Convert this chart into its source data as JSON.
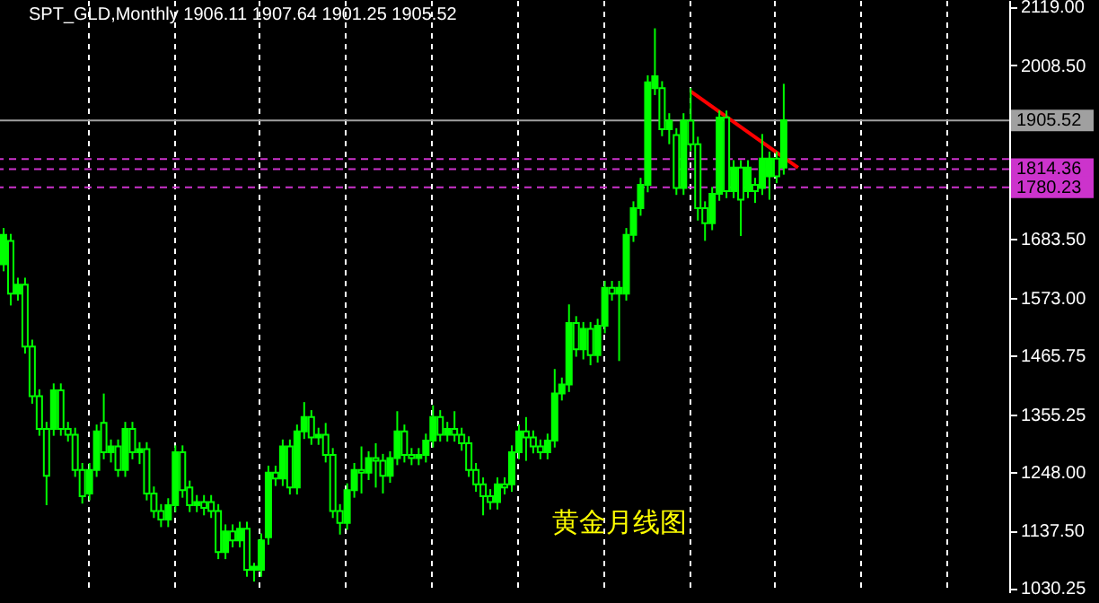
{
  "chart_data": {
    "type": "candlestick",
    "title": "SPT_GLD,Monthly 1906.11 1907.64 1901.25 1905.52",
    "annotations": [
      "黄金月线图"
    ],
    "color": "#00ff00",
    "categories": [
      null,
      null,
      null,
      null,
      null,
      null,
      null,
      null,
      null,
      null,
      null,
      null,
      null,
      null,
      null,
      null,
      null,
      null,
      null,
      null,
      null,
      null,
      null,
      null,
      null,
      null,
      null,
      null,
      null,
      null,
      null,
      null,
      null,
      null,
      null,
      null,
      null,
      null,
      null,
      null,
      null,
      null,
      null,
      null,
      null,
      null,
      null,
      null,
      null,
      null,
      null,
      null,
      null,
      null,
      null,
      null,
      null,
      null,
      null,
      null,
      null,
      null,
      null,
      null,
      null,
      null,
      null,
      null,
      null,
      null,
      null,
      null,
      null,
      null,
      null,
      null,
      null,
      null,
      null,
      null,
      null,
      null,
      null,
      null,
      null,
      null,
      null,
      null,
      null,
      null,
      null,
      null,
      null,
      null,
      null,
      null,
      null,
      null,
      null,
      null,
      null,
      null,
      null,
      null,
      null,
      null,
      null,
      null,
      null,
      null,
      null,
      null,
      null,
      null,
      null,
      null,
      null,
      null,
      null,
      null,
      null,
      null,
      null,
      null,
      null,
      null,
      null,
      null,
      null,
      null,
      null,
      null,
      null,
      null,
      null,
      null,
      null,
      null,
      null,
      null,
      null
    ],
    "ohlc": [
      [
        1636,
        1704,
        1623,
        1691
      ],
      [
        1680,
        1693,
        1559,
        1581
      ],
      [
        1581,
        1611,
        1568,
        1598
      ],
      [
        1598,
        1611,
        1469,
        1482
      ],
      [
        1482,
        1495,
        1375,
        1389
      ],
      [
        1389,
        1402,
        1315,
        1328
      ],
      [
        1328,
        1341,
        1185,
        1240
      ],
      [
        1328,
        1413,
        1315,
        1400
      ],
      [
        1400,
        1413,
        1315,
        1328
      ],
      [
        1328,
        1341,
        1304,
        1317
      ],
      [
        1317,
        1330,
        1238,
        1251
      ],
      [
        1251,
        1264,
        1188,
        1202
      ],
      [
        1207,
        1264,
        1194,
        1251
      ],
      [
        1251,
        1336,
        1238,
        1323
      ],
      [
        1339,
        1394,
        1271,
        1284
      ],
      [
        1284,
        1308,
        1265,
        1295
      ],
      [
        1295,
        1308,
        1238,
        1251
      ],
      [
        1251,
        1341,
        1238,
        1328
      ],
      [
        1328,
        1341,
        1271,
        1284
      ],
      [
        1284,
        1303,
        1262,
        1290
      ],
      [
        1290,
        1303,
        1194,
        1207
      ],
      [
        1207,
        1220,
        1161,
        1174
      ],
      [
        1174,
        1187,
        1144,
        1158
      ],
      [
        1158,
        1198,
        1144,
        1185
      ],
      [
        1185,
        1297,
        1172,
        1284
      ],
      [
        1284,
        1297,
        1199,
        1213
      ],
      [
        1218,
        1231,
        1172,
        1185
      ],
      [
        1185,
        1204,
        1172,
        1191
      ],
      [
        1191,
        1204,
        1166,
        1180
      ],
      [
        1191,
        1204,
        1161,
        1174
      ],
      [
        1174,
        1187,
        1084,
        1097
      ],
      [
        1097,
        1149,
        1084,
        1136
      ],
      [
        1136,
        1149,
        1106,
        1119
      ],
      [
        1119,
        1154,
        1106,
        1141
      ],
      [
        1141,
        1154,
        1051,
        1064
      ],
      [
        1064,
        1077,
        1042,
        1070
      ],
      [
        1064,
        1132,
        1051,
        1119
      ],
      [
        1125,
        1259,
        1111,
        1246
      ],
      [
        1246,
        1259,
        1221,
        1235
      ],
      [
        1235,
        1308,
        1221,
        1295
      ],
      [
        1295,
        1308,
        1205,
        1218
      ],
      [
        1218,
        1336,
        1205,
        1323
      ],
      [
        1323,
        1378,
        1309,
        1350
      ],
      [
        1350,
        1363,
        1298,
        1312
      ],
      [
        1312,
        1330,
        1298,
        1317
      ],
      [
        1317,
        1339,
        1265,
        1279
      ],
      [
        1279,
        1292,
        1161,
        1174
      ],
      [
        1174,
        1187,
        1130,
        1152
      ],
      [
        1152,
        1226,
        1139,
        1213
      ],
      [
        1213,
        1264,
        1199,
        1251
      ],
      [
        1251,
        1295,
        1207,
        1246
      ],
      [
        1246,
        1286,
        1232,
        1273
      ],
      [
        1273,
        1301,
        1218,
        1268
      ],
      [
        1268,
        1281,
        1207,
        1240
      ],
      [
        1240,
        1286,
        1227,
        1273
      ],
      [
        1273,
        1361,
        1260,
        1323
      ],
      [
        1323,
        1336,
        1265,
        1279
      ],
      [
        1279,
        1292,
        1260,
        1273
      ],
      [
        1273,
        1292,
        1260,
        1279
      ],
      [
        1279,
        1319,
        1265,
        1306
      ],
      [
        1306,
        1372,
        1293,
        1350
      ],
      [
        1350,
        1363,
        1304,
        1317
      ],
      [
        1317,
        1341,
        1304,
        1328
      ],
      [
        1328,
        1361,
        1304,
        1317
      ],
      [
        1317,
        1330,
        1287,
        1301
      ],
      [
        1301,
        1314,
        1238,
        1251
      ],
      [
        1251,
        1264,
        1210,
        1224
      ],
      [
        1224,
        1237,
        1166,
        1202
      ],
      [
        1202,
        1215,
        1177,
        1191
      ],
      [
        1191,
        1237,
        1177,
        1224
      ],
      [
        1224,
        1237,
        1205,
        1218
      ],
      [
        1224,
        1297,
        1210,
        1284
      ],
      [
        1284,
        1336,
        1271,
        1323
      ],
      [
        1323,
        1350,
        1268,
        1312
      ],
      [
        1312,
        1325,
        1282,
        1295
      ],
      [
        1295,
        1308,
        1271,
        1284
      ],
      [
        1284,
        1319,
        1271,
        1306
      ],
      [
        1306,
        1440,
        1293,
        1394
      ],
      [
        1394,
        1424,
        1381,
        1411
      ],
      [
        1411,
        1561,
        1397,
        1526
      ],
      [
        1526,
        1539,
        1463,
        1477
      ],
      [
        1477,
        1528,
        1458,
        1515
      ],
      [
        1515,
        1528,
        1447,
        1466
      ],
      [
        1466,
        1534,
        1452,
        1521
      ],
      [
        1521,
        1605,
        1507,
        1592
      ],
      [
        1592,
        1605,
        1568,
        1581
      ],
      [
        1581,
        1605,
        1455,
        1592
      ],
      [
        1581,
        1704,
        1568,
        1691
      ],
      [
        1691,
        1754,
        1678,
        1741
      ],
      [
        1741,
        1798,
        1727,
        1785
      ],
      [
        1785,
        1990,
        1771,
        1977
      ],
      [
        1966,
        2078,
        1953,
        1988
      ],
      [
        1966,
        1979,
        1876,
        1889
      ],
      [
        1889,
        1919,
        1861,
        1905
      ],
      [
        1878,
        1891,
        1766,
        1779
      ],
      [
        1779,
        1919,
        1766,
        1905
      ],
      [
        1905,
        1966,
        1848,
        1861
      ],
      [
        1861,
        1875,
        1718,
        1741
      ],
      [
        1741,
        1754,
        1680,
        1713
      ],
      [
        1713,
        1781,
        1700,
        1768
      ],
      [
        1768,
        1924,
        1755,
        1911
      ],
      [
        1911,
        1924,
        1760,
        1773
      ],
      [
        1773,
        1831,
        1760,
        1817
      ],
      [
        1817,
        1831,
        1689,
        1757
      ],
      [
        1773,
        1831,
        1760,
        1817
      ],
      [
        1785,
        1798,
        1751,
        1773
      ],
      [
        1779,
        1880,
        1766,
        1834
      ],
      [
        1801,
        1847,
        1757,
        1834
      ],
      [
        1834,
        1847,
        1788,
        1801
      ],
      [
        1817,
        1974,
        1804,
        1906
      ],
      null,
      null,
      null,
      null,
      null,
      null,
      null,
      null,
      null,
      null,
      null,
      null,
      null,
      null,
      null,
      null,
      null,
      null,
      null,
      null,
      null,
      null,
      null,
      null,
      null,
      null,
      null,
      null,
      null,
      null,
      null
    ],
    "series": [
      {
        "type": "line",
        "color": "#ff0000",
        "values": [
          null,
          null,
          null,
          null,
          null,
          null,
          null,
          null,
          null,
          null,
          null,
          null,
          null,
          null,
          null,
          null,
          null,
          null,
          null,
          null,
          null,
          null,
          null,
          null,
          null,
          null,
          null,
          null,
          null,
          null,
          null,
          null,
          null,
          null,
          null,
          null,
          null,
          null,
          null,
          null,
          null,
          null,
          null,
          null,
          null,
          null,
          null,
          null,
          null,
          null,
          null,
          null,
          null,
          null,
          null,
          null,
          null,
          null,
          null,
          null,
          null,
          null,
          null,
          null,
          null,
          null,
          null,
          null,
          null,
          null,
          null,
          null,
          null,
          null,
          null,
          null,
          null,
          null,
          null,
          null,
          null,
          null,
          null,
          null,
          null,
          null,
          null,
          null,
          null,
          null,
          null,
          null,
          null,
          null,
          null,
          null,
          1960,
          null,
          null,
          null,
          null,
          null,
          null,
          null,
          null,
          null,
          null,
          null,
          null,
          null,
          null,
          1817,
          null,
          null,
          null,
          null,
          null,
          null,
          null,
          null,
          null,
          null,
          null,
          null,
          null,
          null,
          null,
          null,
          null,
          null,
          null,
          null,
          null,
          null,
          null,
          null,
          null,
          null,
          null,
          null,
          null
        ]
      }
    ],
    "ylim": [
      1022,
      2131
    ],
    "yticks": [
      {
        "value": 2119,
        "label": "2119.00"
      },
      {
        "value": 2008.5,
        "label": "2008.50"
      },
      {
        "value": 1683.5,
        "label": "1683.50"
      },
      {
        "value": 1573,
        "label": "1573.00"
      },
      {
        "value": 1465.75,
        "label": "1465.75"
      },
      {
        "value": 1355.25,
        "label": "1355.25"
      },
      {
        "value": 1248,
        "label": "1248.00"
      },
      {
        "value": 1137.5,
        "label": "1137.50"
      },
      {
        "value": 1030.25,
        "label": "1030.25"
      }
    ],
    "ref_lines": [
      {
        "axis": "y",
        "value": 1905.52,
        "label": "1905.52",
        "color": "#a0a0a0",
        "line_style": "solid"
      },
      {
        "axis": "y",
        "value": 1833,
        "label": null,
        "color": "#cc33cc",
        "line_style": "dashed"
      },
      {
        "axis": "y",
        "value": 1814.36,
        "label": "1814.36",
        "color": "#cc33cc",
        "line_style": "dashed"
      },
      {
        "axis": "y",
        "value": 1780.23,
        "label": "1780.23",
        "color": "#cc33cc",
        "line_style": "dashed"
      }
    ],
    "grid": "x"
  }
}
